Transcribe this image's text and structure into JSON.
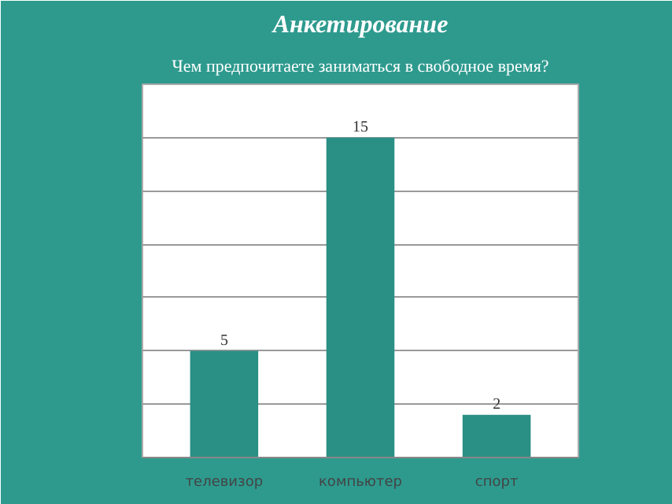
{
  "chart_data": {
    "type": "bar",
    "title": "Анкетирование",
    "subtitle": "Чем предпочитаете заниматься в свободное время?",
    "categories": [
      "телевизор",
      "компьютер",
      "спорт"
    ],
    "values": [
      5,
      15,
      2
    ],
    "color": "#2a8f84",
    "data_labels": true,
    "ylim": [
      0,
      17.5
    ],
    "yticks": [
      {
        "value": 0,
        "label": null
      },
      {
        "value": 2.5,
        "label": null
      },
      {
        "value": 5,
        "label": null
      },
      {
        "value": 7.5,
        "label": null
      },
      {
        "value": 10,
        "label": null
      },
      {
        "value": 12.5,
        "label": null
      },
      {
        "value": 15,
        "label": null
      },
      {
        "value": 17.5,
        "label": null
      }
    ],
    "grid": "y",
    "tick_labels": "x"
  }
}
